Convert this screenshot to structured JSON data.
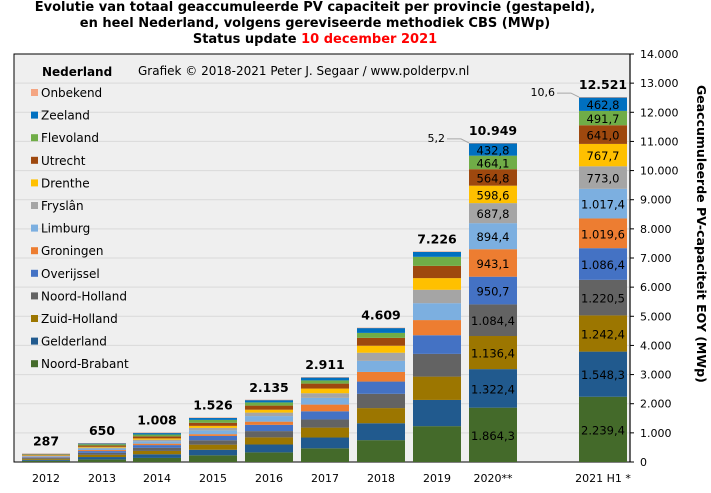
{
  "title": {
    "line1": "Evolutie van totaal geaccumuleerde PV capaciteit per provincie (gestapeld),",
    "line2": "en heel Nederland,  volgens gereviseerde methodiek CBS (MWp)",
    "line3_prefix": "Status update ",
    "line3_date": "10 december 2021"
  },
  "credit": "Grafiek  © 2018-2021 Peter J. Segaar / www.polderpv.nl",
  "chart_data": {
    "type": "bar",
    "stacked": true,
    "title": "Evolutie van totaal geaccumuleerde PV capaciteit per provincie (gestapeld), en heel Nederland, volgens gereviseerde methodiek CBS (MWp) — Status update 10 december 2021",
    "xlabel": "",
    "ylabel": "Geaccumuleerde PV-capaciteit EOY (MWp)",
    "ylim": [
      0,
      14000
    ],
    "yticks": [
      0,
      1000,
      2000,
      3000,
      4000,
      5000,
      6000,
      7000,
      8000,
      9000,
      10000,
      11000,
      12000,
      13000,
      14000
    ],
    "ytick_labels": [
      "0",
      "1.000",
      "2.000",
      "3.000",
      "4.000",
      "5.000",
      "6.000",
      "7.000",
      "8.000",
      "9.000",
      "10.000",
      "11.000",
      "12.000",
      "13.000",
      "14.000"
    ],
    "y_axis_side": "right",
    "grid": true,
    "legend_title": "Nederland",
    "legend_position": "top-left",
    "categories": [
      "2012",
      "2013",
      "2014",
      "2015",
      "2016",
      "2017",
      "2018",
      "2019",
      "2020**",
      "2021 H1 *"
    ],
    "totals": [
      287,
      650,
      1008,
      1526,
      2135,
      2911,
      4609,
      7226,
      10949,
      12521
    ],
    "total_labels": [
      "287",
      "650",
      "1.008",
      "1.526",
      "2.135",
      "2.911",
      "4.609",
      "7.226",
      "10.949",
      "12.521"
    ],
    "series": [
      {
        "name": "Noord-Brabant",
        "color": "#446a2a",
        "values": [
          40,
          90,
          140,
          230,
          330,
          470,
          750,
          1230,
          1864.3,
          2239.4
        ],
        "labels": [
          null,
          null,
          null,
          null,
          null,
          null,
          null,
          null,
          "1.864,3",
          "2.239,4"
        ]
      },
      {
        "name": "Gelderland",
        "color": "#215a8e",
        "values": [
          35,
          80,
          125,
          190,
          270,
          370,
          580,
          900,
          1322.4,
          1548.3
        ],
        "labels": [
          null,
          null,
          null,
          null,
          null,
          null,
          null,
          null,
          "1.322,4",
          "1.548,3"
        ]
      },
      {
        "name": "Zuid-Holland",
        "color": "#9c7600",
        "values": [
          35,
          75,
          115,
          175,
          245,
          340,
          520,
          800,
          1136.4,
          1242.4
        ],
        "labels": [
          null,
          null,
          null,
          null,
          null,
          null,
          null,
          null,
          "1.136,4",
          "1.242,4"
        ]
      },
      {
        "name": "Noord-Holland",
        "color": "#636363",
        "values": [
          30,
          70,
          105,
          150,
          215,
          280,
          490,
          780,
          1084.4,
          1220.5
        ],
        "labels": [
          null,
          null,
          null,
          null,
          null,
          null,
          null,
          null,
          "1.084,4",
          "1.220,5"
        ]
      },
      {
        "name": "Overijssel",
        "color": "#4472c4",
        "values": [
          25,
          60,
          95,
          150,
          215,
          280,
          420,
          640,
          950.7,
          1086.4
        ],
        "labels": [
          null,
          null,
          null,
          null,
          null,
          null,
          null,
          null,
          "950,7",
          "1.086,4"
        ]
      },
      {
        "name": "Groningen",
        "color": "#ed7d31",
        "values": [
          15,
          35,
          50,
          60,
          110,
          230,
          330,
          520,
          943.1,
          1019.6
        ],
        "labels": [
          null,
          null,
          null,
          null,
          null,
          null,
          null,
          null,
          "943,1",
          "1.019,6"
        ]
      },
      {
        "name": "Limburg",
        "color": "#7cafe0",
        "values": [
          25,
          50,
          80,
          130,
          190,
          230,
          380,
          580,
          894.4,
          1017.4
        ],
        "labels": [
          null,
          null,
          null,
          null,
          null,
          null,
          null,
          null,
          "894,4",
          "1.017,4"
        ]
      },
      {
        "name": "Fryslân",
        "color": "#a5a5a5",
        "values": [
          15,
          35,
          55,
          85,
          120,
          160,
          280,
          460,
          687.8,
          773.0
        ],
        "labels": [
          null,
          null,
          null,
          null,
          null,
          null,
          null,
          null,
          "687,8",
          "773,0"
        ]
      },
      {
        "name": "Drenthe",
        "color": "#ffc000",
        "values": [
          10,
          25,
          45,
          70,
          100,
          160,
          240,
          400,
          598.6,
          767.7
        ],
        "labels": [
          null,
          null,
          null,
          null,
          null,
          null,
          null,
          null,
          "598,6",
          "767,7"
        ]
      },
      {
        "name": "Utrecht",
        "color": "#9e480e",
        "values": [
          22,
          45,
          70,
          105,
          140,
          170,
          270,
          420,
          564.8,
          641.0
        ],
        "labels": [
          null,
          null,
          null,
          null,
          null,
          null,
          null,
          null,
          "564,8",
          "641,0"
        ]
      },
      {
        "name": "Flevoland",
        "color": "#70ad47",
        "values": [
          20,
          45,
          65,
          100,
          110,
          110,
          170,
          310,
          464.1,
          491.7
        ],
        "labels": [
          null,
          null,
          null,
          null,
          null,
          null,
          null,
          null,
          "464,1",
          "491,7"
        ]
      },
      {
        "name": "Zeeland",
        "color": "#0070c0",
        "values": [
          13,
          38,
          58,
          76,
          85,
          106,
          169,
          176,
          432.8,
          462.8
        ],
        "labels": [
          null,
          null,
          null,
          null,
          null,
          null,
          null,
          null,
          "432,8",
          "462,8"
        ]
      },
      {
        "name": "Onbekend",
        "color": "#f4a582",
        "values": [
          2,
          2,
          5,
          5,
          5,
          5,
          10,
          10,
          5.2,
          10.6
        ],
        "labels": [
          null,
          null,
          null,
          null,
          null,
          null,
          null,
          null,
          "5,2",
          "10,6"
        ]
      }
    ],
    "annotations": [
      "5,2",
      "10,6"
    ]
  }
}
